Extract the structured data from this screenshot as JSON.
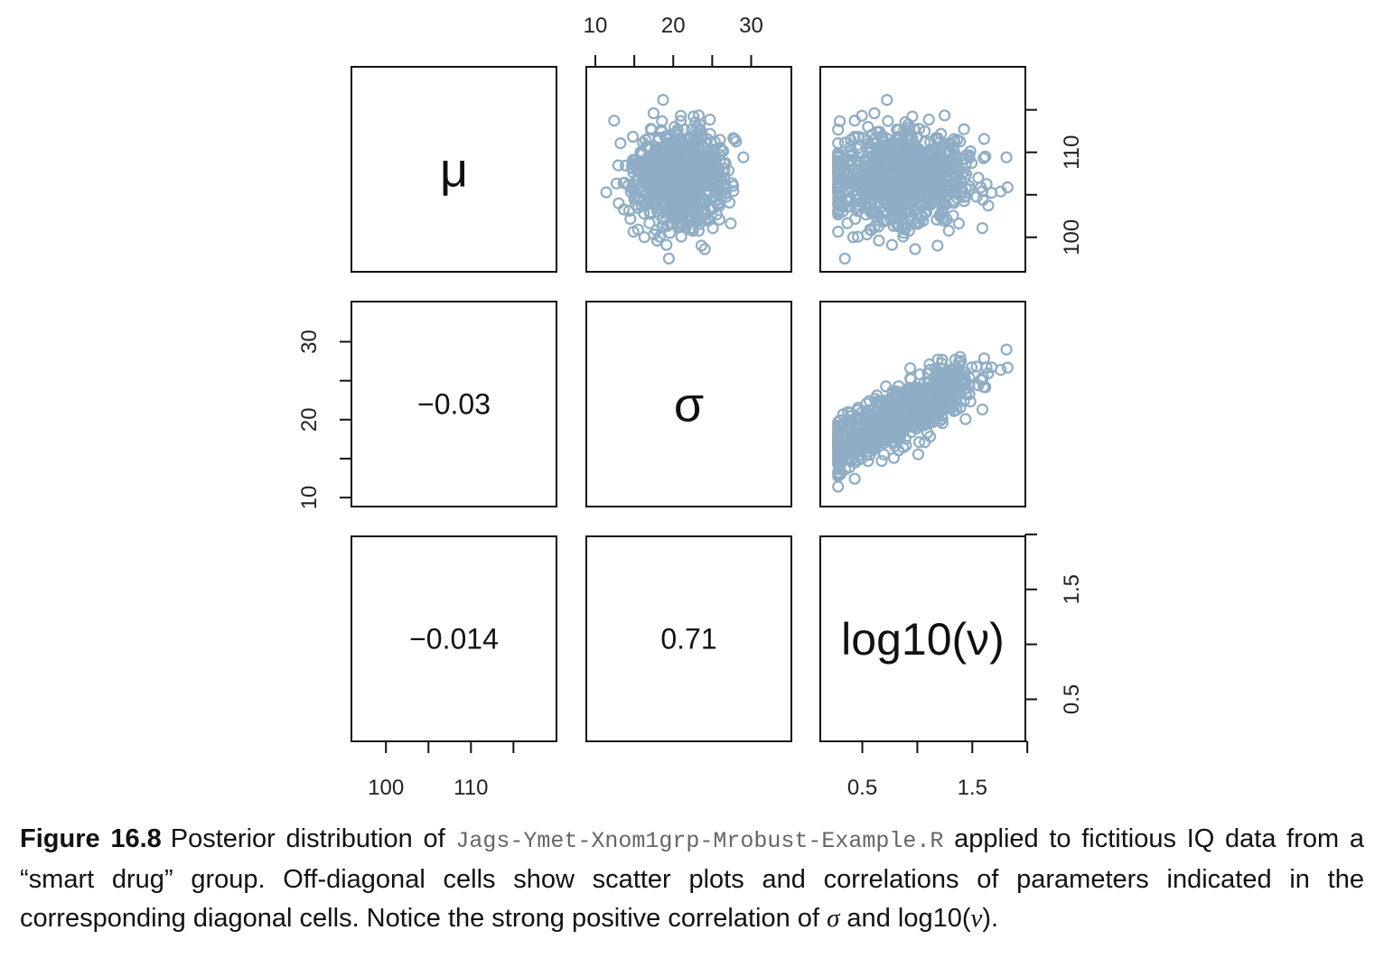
{
  "chart_data": {
    "type": "scatter",
    "layout": "pairs-matrix",
    "variables": [
      {
        "key": "mu",
        "label": "μ",
        "range": [
          97,
          119
        ],
        "ticks": [
          100,
          105,
          110,
          115
        ],
        "tick_labels": [
          "100",
          "110"
        ]
      },
      {
        "key": "sigma",
        "label": "σ",
        "range": [
          10,
          34
        ],
        "ticks": [
          10,
          15,
          20,
          25,
          30
        ],
        "tick_labels": [
          "10",
          "20",
          "30"
        ]
      },
      {
        "key": "log10nu",
        "label": "log10(ν)",
        "range": [
          0.2,
          1.9
        ],
        "ticks": [
          0.5,
          1.0,
          1.5,
          2.0
        ],
        "tick_labels": [
          "0.5",
          "1.5"
        ]
      }
    ],
    "correlations": {
      "mu_sigma": "−0.03",
      "mu_log10nu": "−0.014",
      "sigma_log10nu": "0.71"
    },
    "point_color": "#8fadc4",
    "scatter_summary": {
      "mu": {
        "mean": 107,
        "sd": 2.8
      },
      "sigma": {
        "mean": 20.5,
        "sd": 3.3
      },
      "log10nu": {
        "mean": 0.85,
        "sd": 0.33
      }
    },
    "grid": false,
    "legend": "none"
  },
  "caption": {
    "label": "Figure 16.8",
    "text_1": "Posterior distribution of ",
    "code": "Jags-Ymet-Xnom1grp-Mrobust-Example.R",
    "text_2": " applied to fictitious IQ data from a “smart drug” group. Off-diagonal cells show scatter plots and correlations of parameters indicated in the corresponding diagonal cells. Notice the strong positive correlation of ",
    "sym_sigma": "σ",
    "text_3": " and log10(",
    "sym_nu": "ν",
    "text_4": ")."
  }
}
